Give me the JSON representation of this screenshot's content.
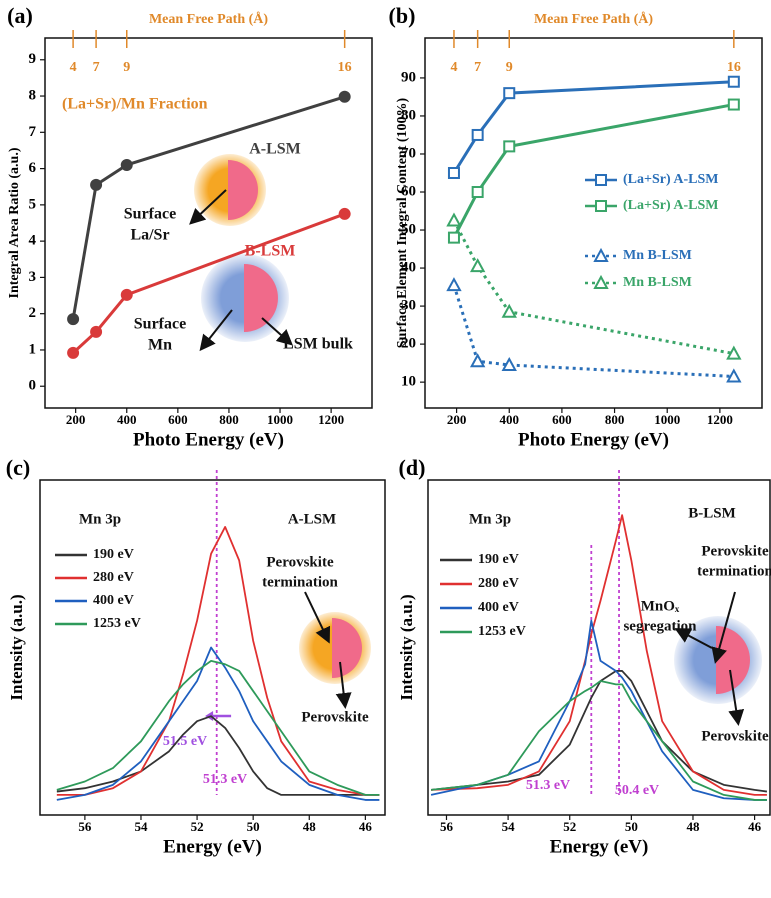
{
  "chart_data": [
    {
      "type": "line",
      "label": "(a)",
      "xlabel": "Photo Energy (eV)",
      "ylabel": "Integral Area Ratio (a.u.)",
      "xlim": [
        80,
        1360
      ],
      "ylim": [
        -0.6,
        9.6
      ],
      "xticks": [
        200,
        400,
        600,
        800,
        1000,
        1200
      ],
      "yticks": [
        0,
        1,
        2,
        3,
        4,
        5,
        6,
        7,
        8,
        9
      ],
      "top_axis": {
        "label": "Mean Free Path (Å)",
        "ticks": [
          4,
          7,
          9,
          16
        ],
        "at": [
          190,
          280,
          400,
          1253
        ],
        "color": "#e0892a"
      },
      "x": [
        190,
        280,
        400,
        1253
      ],
      "series": [
        {
          "name": "A-LSM",
          "color": "#404040",
          "marker": "circle",
          "values": [
            1.85,
            5.55,
            6.1,
            7.98
          ]
        },
        {
          "name": "B-LSM",
          "color": "#d93a3a",
          "marker": "circle",
          "values": [
            0.92,
            1.5,
            2.52,
            4.75
          ]
        }
      ],
      "annotations": [
        "(La+Sr)/Mn Fraction",
        "Surface",
        "La/Sr",
        "Surface",
        "Mn",
        "LSM bulk"
      ]
    },
    {
      "type": "line",
      "label": "(b)",
      "xlabel": "Photo Energy (eV)",
      "ylabel": "Surface Element Integral Content (100%)",
      "xlim": [
        80,
        1360
      ],
      "ylim": [
        3.2,
        100.5
      ],
      "xticks": [
        200,
        400,
        600,
        800,
        1000,
        1200
      ],
      "yticks": [
        10,
        20,
        30,
        40,
        50,
        60,
        70,
        80,
        90
      ],
      "top_axis": {
        "label": "Mean Free Path (Å)",
        "ticks": [
          4,
          7,
          9,
          16
        ],
        "at": [
          190,
          280,
          400,
          1253
        ],
        "color": "#e0892a"
      },
      "x": [
        190,
        280,
        400,
        1253
      ],
      "series": [
        {
          "name": "(La+Sr) A-LSM",
          "color": "#2a6fb8",
          "marker": "square",
          "dash": false,
          "values": [
            65,
            75,
            86,
            89
          ]
        },
        {
          "name": "(La+Sr) A-LSM",
          "color": "#3aa569",
          "marker": "square",
          "dash": false,
          "values": [
            48,
            60,
            72,
            83
          ]
        },
        {
          "name": "Mn B-LSM",
          "color": "#2a6fb8",
          "marker": "triangle",
          "dash": true,
          "values": [
            35.5,
            15.5,
            14.5,
            11.5
          ]
        },
        {
          "name": "Mn B-LSM",
          "color": "#3aa569",
          "marker": "triangle",
          "dash": true,
          "values": [
            52.5,
            40.5,
            28.5,
            17.5
          ]
        }
      ],
      "annotations": []
    },
    {
      "type": "spectrum",
      "label": "(c)",
      "xlabel": "Energy (eV)",
      "ylabel": "Intensity (a.u.)",
      "xlim": [
        57.6,
        45.3
      ],
      "ylim": [
        0,
        100
      ],
      "xticks": [
        56,
        54,
        52,
        50,
        48,
        46
      ],
      "x": [
        57,
        56,
        55,
        54,
        53,
        52.5,
        52,
        51.5,
        51,
        50.5,
        50,
        49.5,
        49,
        48,
        47,
        46,
        45.5
      ],
      "series": [
        {
          "name": "190 eV",
          "color": "#333333",
          "values": [
            7,
            8,
            10,
            13,
            19,
            24,
            28,
            29.5,
            26,
            20,
            13,
            8,
            6,
            6,
            6,
            6,
            6
          ]
        },
        {
          "name": "280 eV",
          "color": "#e03030",
          "values": [
            6,
            6,
            8,
            13,
            28,
            42,
            58,
            78,
            86,
            76,
            52,
            35,
            22,
            10,
            7.5,
            6,
            6
          ]
        },
        {
          "name": "400 eV",
          "color": "#1f5fbf",
          "values": [
            4.5,
            6,
            9,
            16,
            28,
            34,
            40,
            50,
            44,
            37,
            28,
            22,
            16,
            9,
            6,
            4.5,
            4.5
          ]
        },
        {
          "name": "1253 eV",
          "color": "#2e9a5a",
          "values": [
            7.5,
            10,
            14,
            22,
            34,
            39,
            43,
            46,
            45,
            43,
            37,
            31,
            25,
            13,
            9,
            6,
            6
          ]
        }
      ],
      "vlines": [
        {
          "value": 51.3,
          "label": "51.3 eV",
          "color": "#c040d0"
        },
        {
          "value": 51.5,
          "label": "51.5 eV",
          "color": "#a050e0",
          "style": "arrow"
        }
      ],
      "annotations": [
        "Mn 3p",
        "A-LSM",
        "Perovskite",
        "termination",
        "Perovskite"
      ]
    },
    {
      "type": "spectrum",
      "label": "(d)",
      "xlabel": "Energy (eV)",
      "ylabel": "Intensity (a.u.)",
      "xlim": [
        56.6,
        45.5
      ],
      "ylim": [
        0,
        100
      ],
      "xticks": [
        56,
        54,
        52,
        50,
        48,
        46
      ],
      "x": [
        56.5,
        55,
        54,
        53,
        52,
        51.5,
        51.3,
        51,
        50.5,
        50.3,
        50,
        49.5,
        49,
        48,
        47,
        46,
        45.6
      ],
      "series": [
        {
          "name": "190 eV",
          "color": "#333333",
          "values": [
            7.5,
            9,
            10,
            12,
            21,
            31,
            35,
            40,
            43,
            43,
            40,
            31,
            22,
            13,
            9,
            7.5,
            7
          ]
        },
        {
          "name": "280 eV",
          "color": "#e03030",
          "values": [
            7.5,
            8,
            9,
            13,
            28,
            46,
            54,
            64,
            82,
            89.5,
            76,
            49,
            28,
            13,
            7.5,
            6,
            6
          ]
        },
        {
          "name": "400 eV",
          "color": "#1f5fbf",
          "values": [
            6,
            9,
            12,
            16,
            34,
            45,
            58,
            46,
            43,
            41,
            37,
            28,
            19,
            7.5,
            5,
            4.5,
            4.5
          ]
        },
        {
          "name": "1253 eV",
          "color": "#2e9a5a",
          "values": [
            7.5,
            9,
            12,
            25,
            34,
            37,
            38,
            40,
            39,
            39,
            34,
            28,
            22,
            10,
            6,
            4.5,
            4.5
          ]
        }
      ],
      "vlines": [
        {
          "value": 51.3,
          "label": "51.3 eV",
          "color": "#c040d0"
        },
        {
          "value": 50.4,
          "label": "50.4 eV",
          "color": "#c040d0"
        }
      ],
      "annotations": [
        "Mn 3p",
        "B-LSM",
        "Perovskite",
        "termination",
        "MnOₓ",
        "segregation",
        "Perovskite"
      ]
    }
  ]
}
